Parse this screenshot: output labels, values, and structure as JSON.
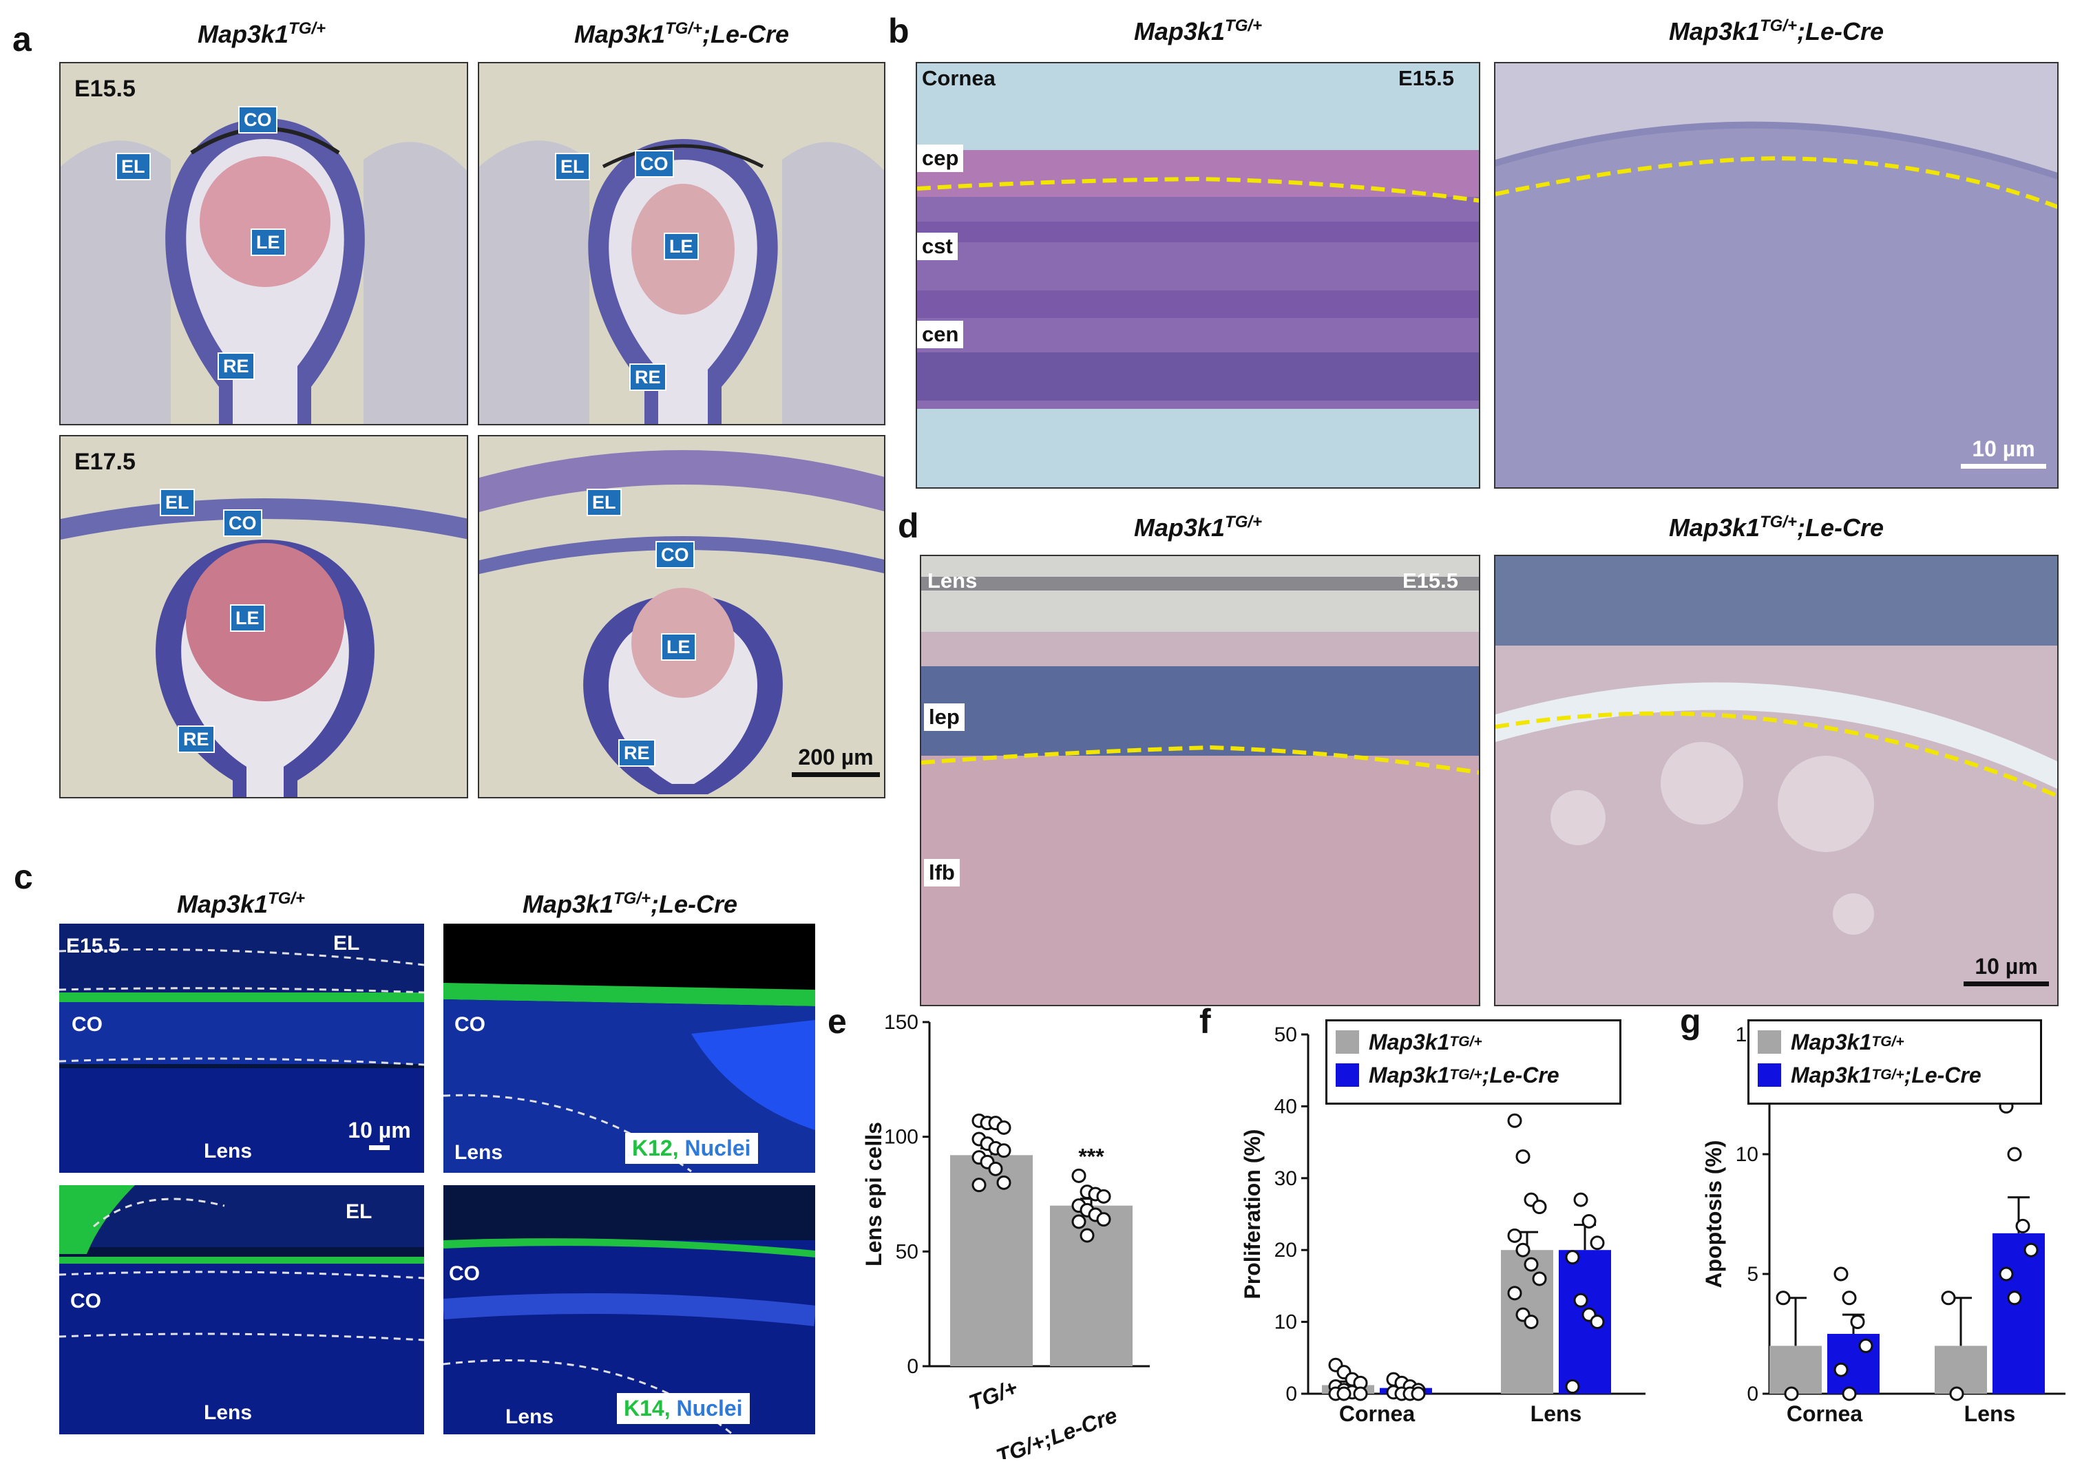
{
  "panel_letters": {
    "a": "a",
    "b": "b",
    "c": "c",
    "d": "d",
    "e": "e",
    "f": "f",
    "g": "g"
  },
  "genotypes": {
    "control_base": "Map3k1",
    "control_sup": "TG/+",
    "mutant_base": "Map3k1",
    "mutant_sup": "TG/+",
    "mutant_suffix": ";Le-Cre"
  },
  "panel_a": {
    "stages": [
      "E15.5",
      "E17.5"
    ],
    "tags": {
      "EL": "EL",
      "CO": "CO",
      "LE": "LE",
      "RE": "RE"
    },
    "scale": "200 µm"
  },
  "panel_b": {
    "tissue": "Cornea",
    "stage": "E15.5",
    "layers": [
      "cep",
      "cst",
      "cen"
    ],
    "scale": "10 µm"
  },
  "panel_c": {
    "stage": "E15.5",
    "labels": {
      "EL": "EL",
      "CO": "CO",
      "Lens": "Lens"
    },
    "scale": "10 µm",
    "stain_top": {
      "marker": "K12,",
      "nuclei": " Nuclei"
    },
    "stain_bottom": {
      "marker": "K14,",
      "nuclei": " Nuclei"
    }
  },
  "panel_d": {
    "tissue": "Lens",
    "stage": "E15.5",
    "layers": [
      "lep",
      "lfb"
    ],
    "scale": "10 µm"
  },
  "colors": {
    "control": "#a6a6a6",
    "mutant": "#1010e0",
    "dashed_outline": "#f2e600",
    "stain_green": "#20e020",
    "stain_blue": "#2f7ad8"
  },
  "chart_data": [
    {
      "panel": "e",
      "type": "bar",
      "ylabel": "Lens epi cells",
      "ylim": [
        0,
        150
      ],
      "yticks": [
        0,
        50,
        100,
        150
      ],
      "categories": [
        "TG/+",
        "TG/+;Le-Cre"
      ],
      "values": [
        92,
        70
      ],
      "errors": [
        3,
        3
      ],
      "significance": "***",
      "points": [
        [
          107,
          106,
          106,
          104,
          99,
          97,
          95,
          94,
          91,
          89,
          86,
          80,
          79
        ],
        [
          83,
          76,
          75,
          74,
          70,
          68,
          66,
          64,
          63,
          57
        ]
      ]
    },
    {
      "panel": "f",
      "type": "bar",
      "ylabel": "Proliferation (%)",
      "ylim": [
        0,
        50
      ],
      "yticks": [
        0,
        10,
        20,
        30,
        40,
        50
      ],
      "categories": [
        "Cornea",
        "Lens"
      ],
      "legend": "top",
      "series": [
        {
          "name": "Map3k1TG/+",
          "values": [
            1.2,
            20
          ],
          "errors": [
            0.5,
            2.5
          ],
          "points": [
            [
              4,
              3,
              2,
              1.5,
              1,
              0.5,
              0.2,
              0,
              0,
              0
            ],
            [
              38,
              33,
              27,
              26,
              22,
              20,
              18,
              16,
              14,
              11,
              10
            ]
          ]
        },
        {
          "name": "Map3k1TG/+;Le-Cre",
          "values": [
            0.8,
            20
          ],
          "errors": [
            0.3,
            3.5
          ],
          "points": [
            [
              2,
              1.5,
              1,
              0.5,
              0.2,
              0,
              0,
              0
            ],
            [
              45,
              27,
              24,
              21,
              19,
              13,
              11,
              10,
              1
            ]
          ]
        }
      ]
    },
    {
      "panel": "g",
      "type": "bar",
      "ylabel": "Apoptosis (%)",
      "ylim": [
        0,
        15
      ],
      "yticks": [
        0,
        5,
        10,
        15
      ],
      "categories": [
        "Cornea",
        "Lens"
      ],
      "legend": "top",
      "series": [
        {
          "name": "Map3k1TG/+",
          "values": [
            2,
            2
          ],
          "errors": [
            2,
            2
          ],
          "points": [
            [
              4,
              0
            ],
            [
              4,
              0
            ]
          ]
        },
        {
          "name": "Map3k1TG/+;Le-Cre",
          "values": [
            2.5,
            6.7
          ],
          "errors": [
            0.8,
            1.5
          ],
          "points": [
            [
              5,
              4,
              3,
              2,
              1,
              0
            ],
            [
              12,
              10,
              7,
              6,
              5,
              4
            ]
          ]
        }
      ]
    }
  ]
}
